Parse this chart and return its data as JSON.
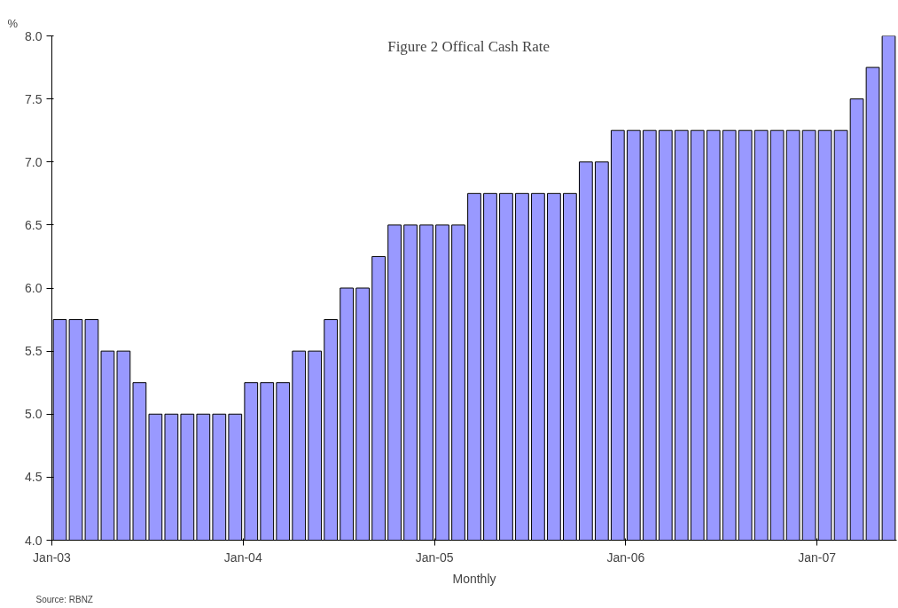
{
  "chart_data": {
    "type": "bar",
    "title": "Figure 2    Offical Cash Rate",
    "xlabel": "Monthly",
    "ylabel": "%",
    "annotations": [
      "Source: RBNZ"
    ],
    "categories": [
      "Jan-03",
      null,
      null,
      null,
      null,
      null,
      null,
      null,
      null,
      null,
      null,
      null,
      "Jan-04",
      null,
      null,
      null,
      null,
      null,
      null,
      null,
      null,
      null,
      null,
      null,
      "Jan-05",
      null,
      null,
      null,
      null,
      null,
      null,
      null,
      null,
      null,
      null,
      null,
      "Jan-06",
      null,
      null,
      null,
      null,
      null,
      null,
      null,
      null,
      null,
      null,
      null,
      "Jan-07",
      null,
      null,
      null,
      null
    ],
    "values": [
      5.75,
      5.75,
      5.75,
      5.5,
      5.5,
      5.25,
      5.0,
      5.0,
      5.0,
      5.0,
      5.0,
      5.0,
      5.25,
      5.25,
      5.25,
      5.5,
      5.5,
      5.75,
      6.0,
      6.0,
      6.25,
      6.5,
      6.5,
      6.5,
      6.5,
      6.5,
      6.75,
      6.75,
      6.75,
      6.75,
      6.75,
      6.75,
      6.75,
      7.0,
      7.0,
      7.25,
      7.25,
      7.25,
      7.25,
      7.25,
      7.25,
      7.25,
      7.25,
      7.25,
      7.25,
      7.25,
      7.25,
      7.25,
      7.25,
      7.25,
      7.5,
      7.75,
      8.0
    ],
    "color": "#9999ff",
    "ylim": [
      4.0,
      8.0
    ],
    "yticks": [
      {
        "value": 4.0,
        "label": "4.0"
      },
      {
        "value": 4.5,
        "label": "4.5"
      },
      {
        "value": 5.0,
        "label": "5.0"
      },
      {
        "value": 5.5,
        "label": "5.5"
      },
      {
        "value": 6.0,
        "label": "6.0"
      },
      {
        "value": 6.5,
        "label": "6.5"
      },
      {
        "value": 7.0,
        "label": "7.0"
      },
      {
        "value": 7.5,
        "label": "7.5"
      },
      {
        "value": 8.0,
        "label": "8.0"
      }
    ],
    "grid": false
  }
}
